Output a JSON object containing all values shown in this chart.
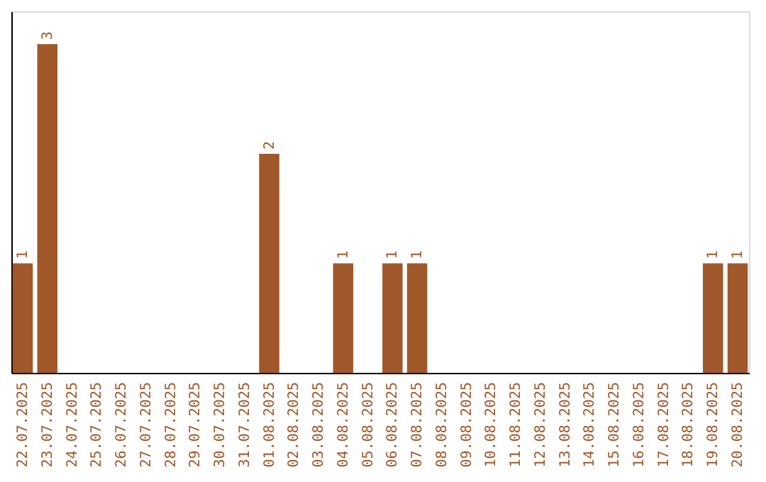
{
  "chart_data": {
    "type": "bar",
    "categories": [
      "22.07.2025",
      "23.07.2025",
      "24.07.2025",
      "25.07.2025",
      "26.07.2025",
      "27.07.2025",
      "28.07.2025",
      "29.07.2025",
      "30.07.2025",
      "31.07.2025",
      "01.08.2025",
      "02.08.2025",
      "03.08.2025",
      "04.08.2025",
      "05.08.2025",
      "06.08.2025",
      "07.08.2025",
      "08.08.2025",
      "09.08.2025",
      "10.08.2025",
      "11.08.2025",
      "12.08.2025",
      "13.08.2025",
      "14.08.2025",
      "15.08.2025",
      "16.08.2025",
      "17.08.2025",
      "18.08.2025",
      "19.08.2025",
      "20.08.2025"
    ],
    "values": [
      1,
      3,
      0,
      0,
      0,
      0,
      0,
      0,
      0,
      0,
      2,
      0,
      0,
      1,
      0,
      1,
      1,
      0,
      0,
      0,
      0,
      0,
      0,
      0,
      0,
      0,
      0,
      0,
      1,
      1
    ],
    "value_labels": [
      "1",
      "3",
      null,
      null,
      null,
      null,
      null,
      null,
      null,
      null,
      "2",
      null,
      null,
      "1",
      null,
      "1",
      "1",
      null,
      null,
      null,
      null,
      null,
      null,
      null,
      null,
      null,
      null,
      null,
      "1",
      "1"
    ],
    "color": "#a0582a",
    "grid": false,
    "tick_labels": "x"
  }
}
